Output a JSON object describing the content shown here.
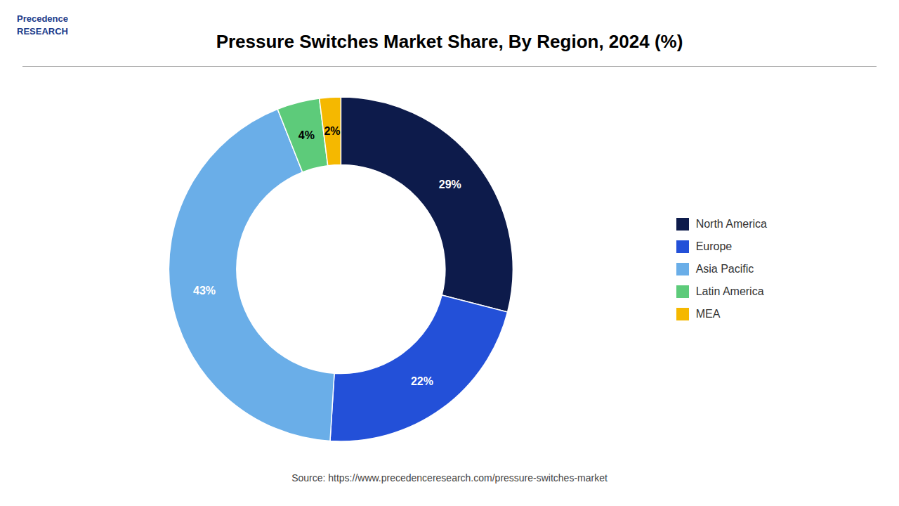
{
  "chart_data": {
    "type": "donut",
    "title": "Pressure Switches Market Share, By Region, 2024 (%)",
    "categories": [
      "North America",
      "Europe",
      "Asia Pacific",
      "Latin America",
      "MEA"
    ],
    "values": [
      29,
      22,
      43,
      4,
      2
    ],
    "value_labels": [
      "29%",
      "22%",
      "43%",
      "4%",
      "2%"
    ],
    "colors": [
      "#0d1b4b",
      "#2350d8",
      "#6aaee8",
      "#5dcb7a",
      "#f5b800"
    ],
    "data_labels": true,
    "legend": "right",
    "annotations": [
      "Precedence\nRESEARCH",
      "Source: https://www.precedenceresearch.com/pressure-switches-market"
    ]
  }
}
